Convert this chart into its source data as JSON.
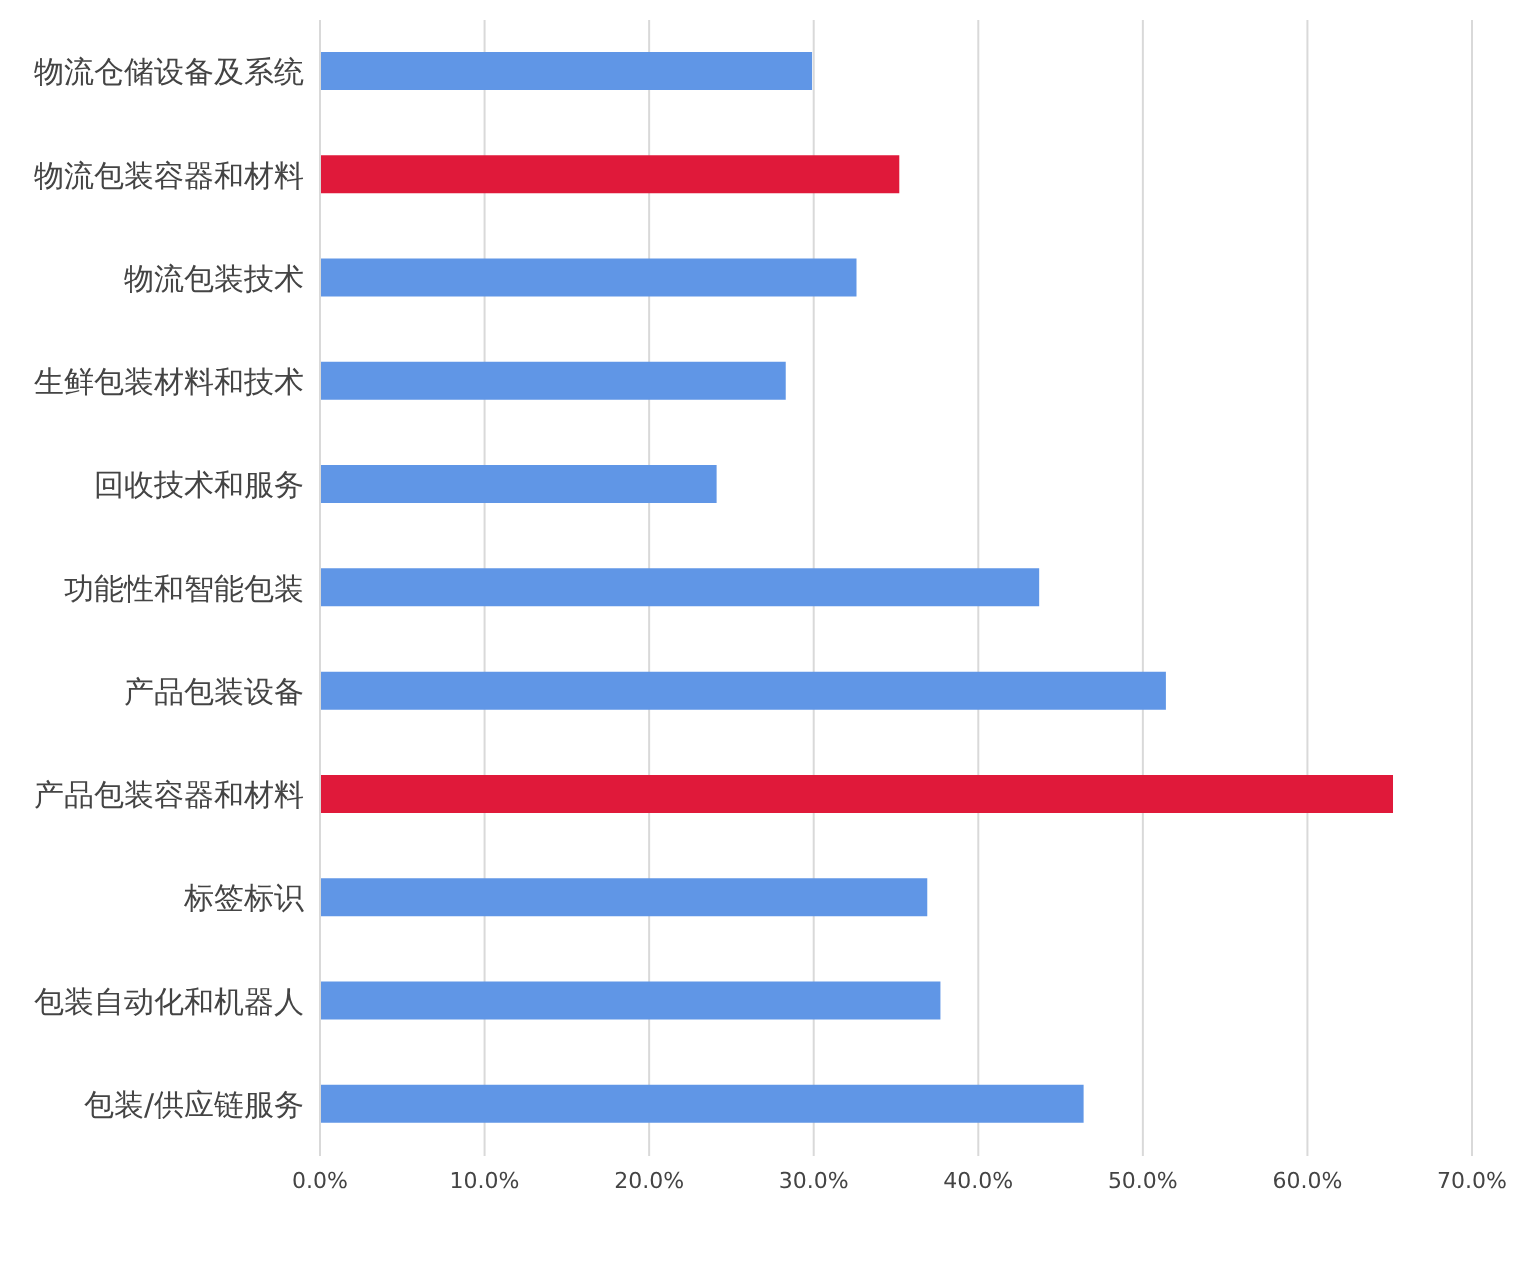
{
  "chart_data": {
    "type": "bar",
    "orientation": "horizontal",
    "categories": [
      "物流仓储设备及系统",
      "物流包装容器和材料",
      "物流包装技术",
      "生鲜包装材料和技术",
      "回收技术和服务",
      "功能性和智能包装",
      "产品包装设备",
      "产品包装容器和材料",
      "标签标识",
      "包装自动化和机器人",
      "包装/供应链服务"
    ],
    "values": [
      29.9,
      35.2,
      32.6,
      28.3,
      24.1,
      43.7,
      51.4,
      65.2,
      36.9,
      37.7,
      46.4
    ],
    "colors": [
      "#6096e6",
      "#e0193a",
      "#6096e6",
      "#6096e6",
      "#6096e6",
      "#6096e6",
      "#6096e6",
      "#e0193a",
      "#6096e6",
      "#6096e6",
      "#6096e6"
    ],
    "xlim": [
      0,
      70
    ],
    "xticks": [
      {
        "value": 0,
        "label": "0.0%"
      },
      {
        "value": 10,
        "label": "10.0%"
      },
      {
        "value": 20,
        "label": "20.0%"
      },
      {
        "value": 30,
        "label": "30.0%"
      },
      {
        "value": 40,
        "label": "40.0%"
      },
      {
        "value": 50,
        "label": "50.0%"
      },
      {
        "value": 60,
        "label": "60.0%"
      },
      {
        "value": 70,
        "label": "70.0%"
      }
    ],
    "grid": "x"
  }
}
